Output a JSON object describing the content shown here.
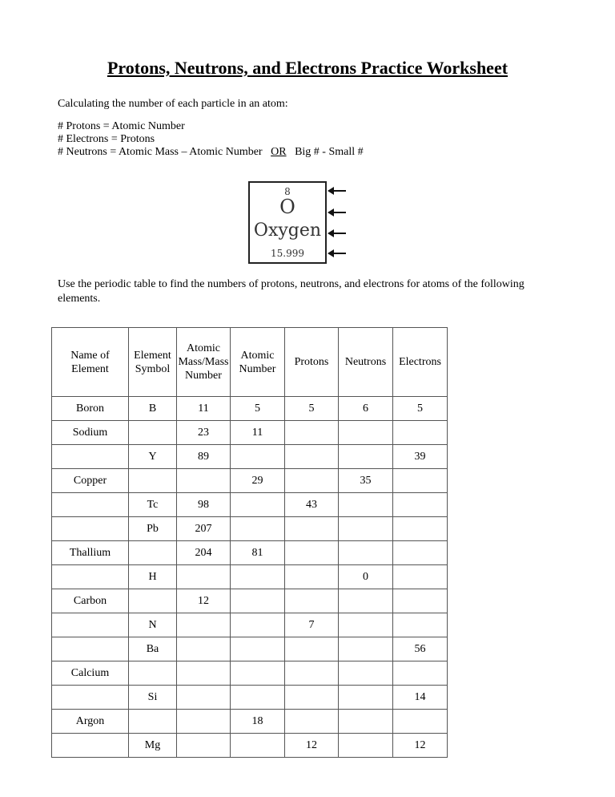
{
  "title": "Protons, Neutrons, and Electrons Practice Worksheet",
  "intro": "Calculating the number of each particle in an atom:",
  "rules": [
    "# Protons = Atomic Number",
    "# Electrons = Protons"
  ],
  "neutron_rule": {
    "text": "# Neutrons = Atomic Mass – Atomic Number",
    "or": "OR",
    "alt": "Big # - Small #"
  },
  "element_card": {
    "number": "8",
    "symbol": "O",
    "name": "Oxygen",
    "mass": "15.999"
  },
  "instructions": [
    "Use the periodic table to find the numbers of protons, neutrons, and electrons for atoms of the following",
    "elements."
  ],
  "table": {
    "headers": [
      "Name of Element",
      "Element Symbol",
      "Atomic Mass/Mass Number",
      "Atomic Number",
      "Protons",
      "Neutrons",
      "Electrons"
    ],
    "rows": [
      [
        "Boron",
        "B",
        "11",
        "5",
        "5",
        "6",
        "5"
      ],
      [
        "Sodium",
        "",
        "23",
        "11",
        "",
        "",
        ""
      ],
      [
        "",
        "Y",
        "89",
        "",
        "",
        "",
        "39"
      ],
      [
        "Copper",
        "",
        "",
        "29",
        "",
        "35",
        ""
      ],
      [
        "",
        "Tc",
        "98",
        "",
        "43",
        "",
        ""
      ],
      [
        "",
        "Pb",
        "207",
        "",
        "",
        "",
        ""
      ],
      [
        "Thallium",
        "",
        "204",
        "81",
        "",
        "",
        ""
      ],
      [
        "",
        "H",
        "",
        "",
        "",
        "0",
        ""
      ],
      [
        "Carbon",
        "",
        "12",
        "",
        "",
        "",
        ""
      ],
      [
        "",
        "N",
        "",
        "",
        "7",
        "",
        ""
      ],
      [
        "",
        "Ba",
        "",
        "",
        "",
        "",
        "56"
      ],
      [
        "Calcium",
        "",
        "",
        "",
        "",
        "",
        ""
      ],
      [
        "",
        "Si",
        "",
        "",
        "",
        "",
        "14"
      ],
      [
        "Argon",
        "",
        "",
        "18",
        "",
        "",
        ""
      ],
      [
        "",
        "Mg",
        "",
        "",
        "12",
        "",
        "12"
      ]
    ]
  }
}
